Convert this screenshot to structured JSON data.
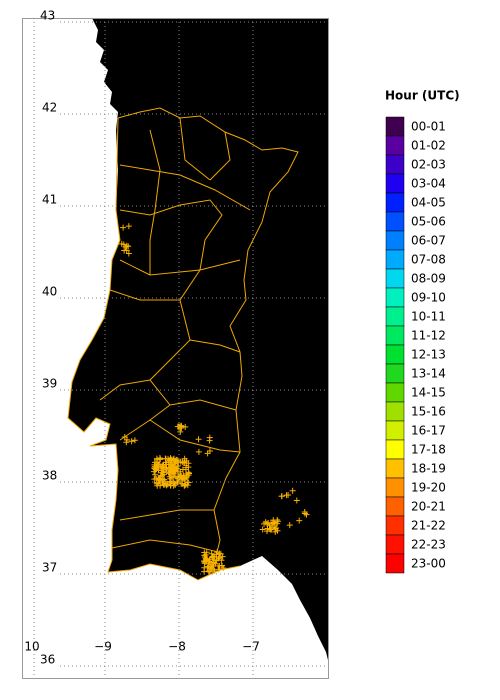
{
  "map": {
    "lat_labels": [
      "43",
      "42",
      "41",
      "40",
      "39",
      "38",
      "37",
      "36"
    ],
    "lon_labels": [
      "10",
      "−9",
      "−8",
      "−7"
    ],
    "legend": {
      "title": "Hour (UTC)",
      "items": [
        {
          "label": "00-01",
          "color": "#400050"
        },
        {
          "label": "01-02",
          "color": "#5a00a0"
        },
        {
          "label": "02-03",
          "color": "#3c00c8"
        },
        {
          "label": "03-04",
          "color": "#2000f0"
        },
        {
          "label": "04-05",
          "color": "#0020ff"
        },
        {
          "label": "05-06",
          "color": "#0050ff"
        },
        {
          "label": "06-07",
          "color": "#0080ff"
        },
        {
          "label": "07-08",
          "color": "#00aaff"
        },
        {
          "label": "08-09",
          "color": "#00d8f0"
        },
        {
          "label": "09-10",
          "color": "#00f0c0"
        },
        {
          "label": "10-11",
          "color": "#00f090"
        },
        {
          "label": "11-12",
          "color": "#00e860"
        },
        {
          "label": "12-13",
          "color": "#00e030"
        },
        {
          "label": "13-14",
          "color": "#20d820"
        },
        {
          "label": "14-15",
          "color": "#60d800"
        },
        {
          "label": "15-16",
          "color": "#a0e000"
        },
        {
          "label": "16-17",
          "color": "#d0f000"
        },
        {
          "label": "17-18",
          "color": "#ffff00"
        },
        {
          "label": "18-19",
          "color": "#ffc000"
        },
        {
          "label": "19-20",
          "color": "#ff9000"
        },
        {
          "label": "20-21",
          "color": "#ff6000"
        },
        {
          "label": "21-22",
          "color": "#ff3000"
        },
        {
          "label": "22-23",
          "color": "#ff1000"
        },
        {
          "label": "23-00",
          "color": "#ff0000"
        }
      ]
    }
  }
}
